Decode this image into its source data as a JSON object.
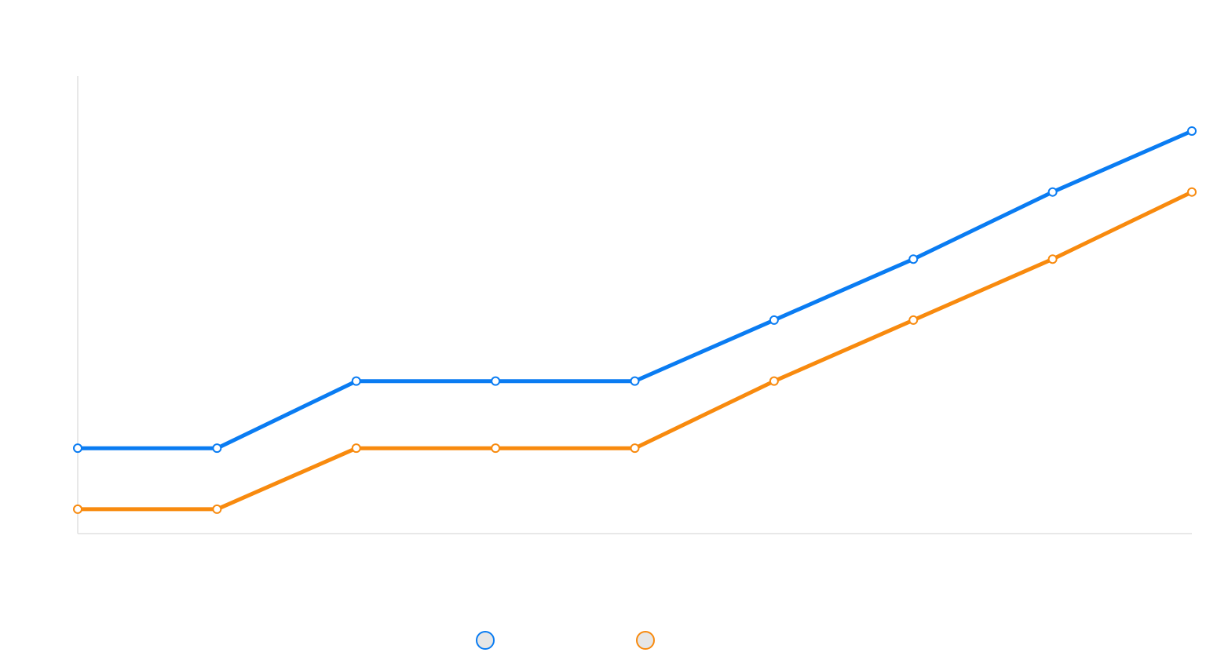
{
  "chart_data": {
    "type": "line",
    "title": "",
    "xlabel": "",
    "ylabel": "",
    "categories": [
      "",
      "",
      "",
      "",
      "",
      "",
      "",
      "",
      ""
    ],
    "ylim": [
      0,
      15
    ],
    "grid": false,
    "legend_position": "bottom-center",
    "series": [
      {
        "name": "",
        "color": "#0a7cf2",
        "values": [
          2.8,
          2.8,
          5.0,
          5.0,
          5.0,
          7.0,
          9.0,
          11.2,
          13.2
        ]
      },
      {
        "name": "",
        "color": "#f88a0e",
        "values": [
          0.8,
          0.8,
          2.8,
          2.8,
          2.8,
          5.0,
          7.0,
          9.0,
          11.2
        ]
      }
    ],
    "legend_marker_fill": "#e6e6e6"
  }
}
